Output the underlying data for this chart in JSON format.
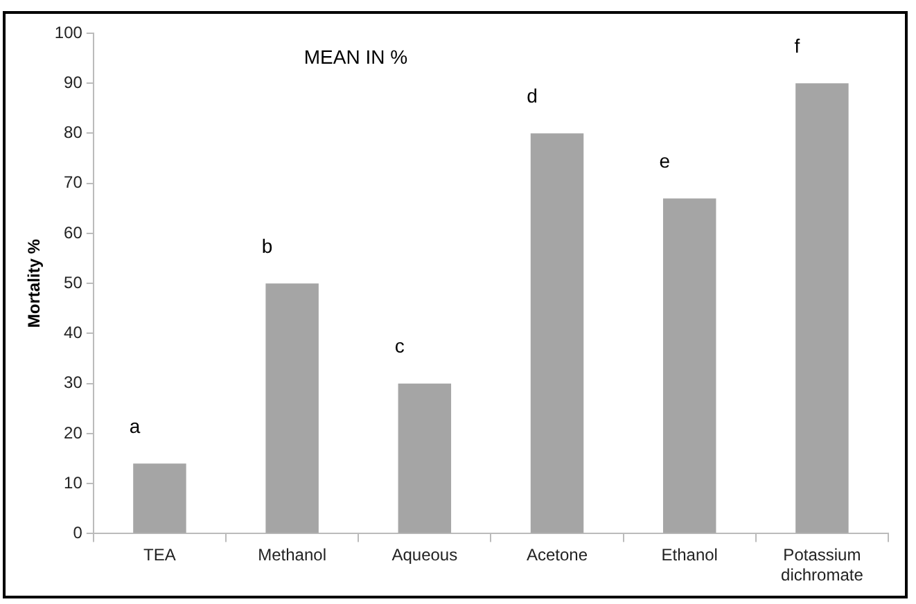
{
  "chart_data": {
    "type": "bar",
    "title": "MEAN IN %",
    "ylabel": "Mortality %",
    "categories": [
      "TEA",
      "Methanol",
      "Aqueous",
      "Acetone",
      "Ethanol",
      "Potassium dichromate"
    ],
    "values": [
      14,
      50,
      30,
      80,
      67,
      90
    ],
    "color": "#a5a5a5",
    "ylim": [
      0,
      100
    ],
    "yticks": [
      0,
      10,
      20,
      30,
      40,
      50,
      60,
      70,
      80,
      90,
      100
    ],
    "grid": false,
    "legend": false,
    "annotations": [
      {
        "text": "a",
        "x": "TEA",
        "y": 14
      },
      {
        "text": "b",
        "x": "Methanol",
        "y": 50
      },
      {
        "text": "c",
        "x": "Aqueous",
        "y": 30
      },
      {
        "text": "d",
        "x": "Acetone",
        "y": 80
      },
      {
        "text": "e",
        "x": "Ethanol",
        "y": 67
      },
      {
        "text": "f",
        "x": "Potassium dichromate",
        "y": 90
      }
    ]
  }
}
